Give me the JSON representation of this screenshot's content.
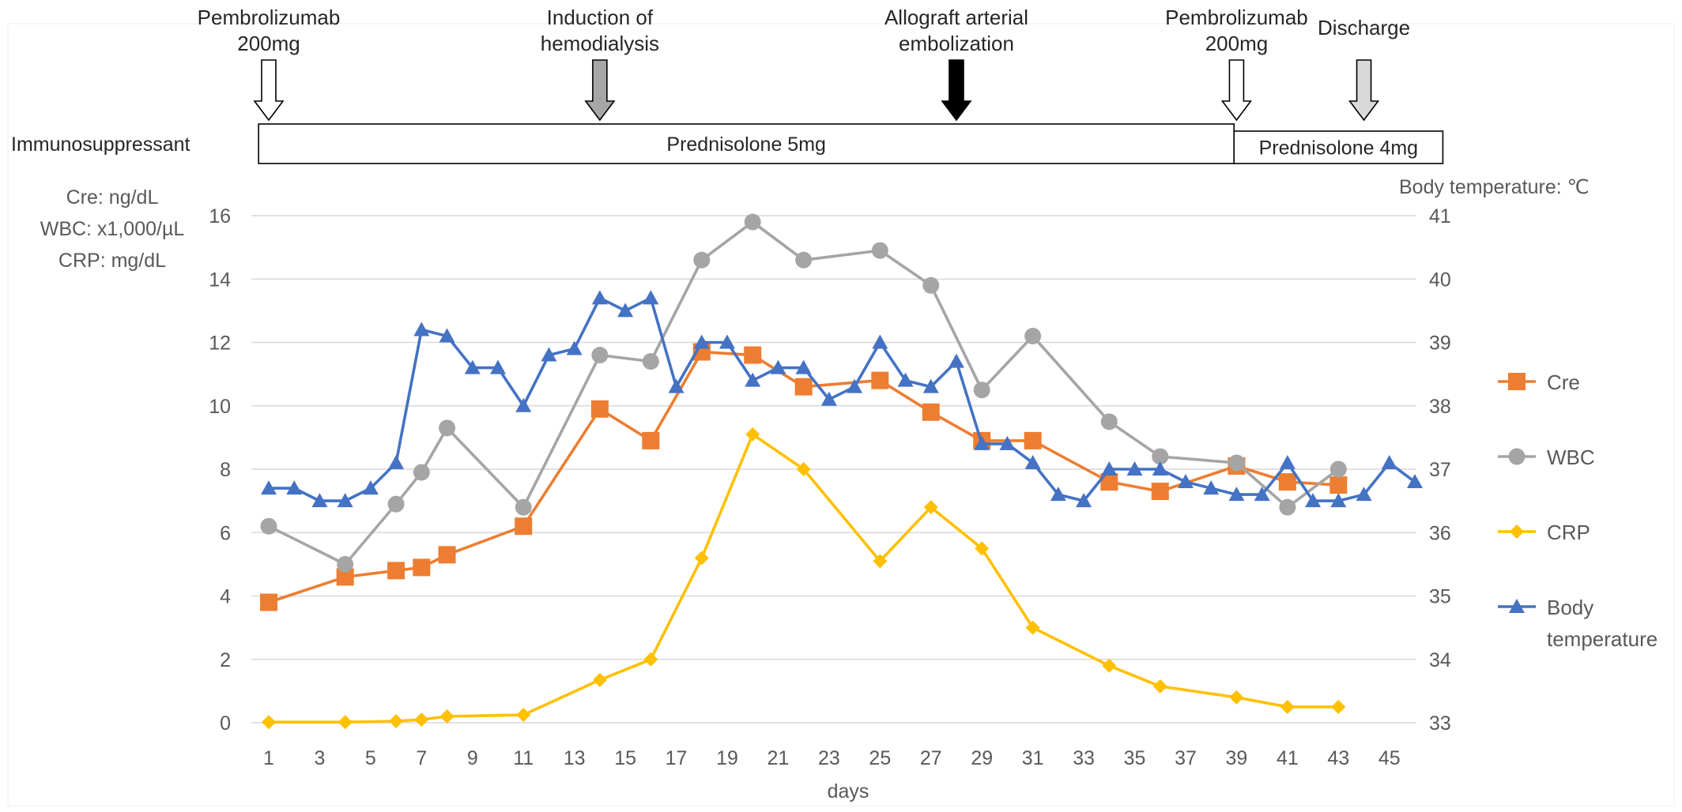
{
  "chart_data": {
    "type": "line",
    "xlabel": "days",
    "y_left_label": [
      "Cre: ng/dL",
      "WBC: x1,000/µL",
      "CRP: mg/dL"
    ],
    "y_right_label": "Body temperature: ℃",
    "xlim": [
      1,
      46
    ],
    "ylim_left": [
      0,
      16
    ],
    "ylim_right": [
      33,
      41
    ],
    "x_ticks": [
      1,
      3,
      5,
      7,
      9,
      11,
      13,
      15,
      17,
      19,
      21,
      23,
      25,
      27,
      29,
      31,
      33,
      35,
      37,
      39,
      41,
      43,
      45
    ],
    "y_left_ticks": [
      0,
      2,
      4,
      6,
      8,
      10,
      12,
      14,
      16
    ],
    "y_right_ticks": [
      33,
      34,
      35,
      36,
      37,
      38,
      39,
      40,
      41
    ],
    "grid": "horizontal",
    "legend_position": "right",
    "series": [
      {
        "name": "Cre",
        "axis": "left",
        "color": "#ED7D31",
        "marker": "square",
        "points": [
          [
            1,
            3.8
          ],
          [
            4,
            4.6
          ],
          [
            6,
            4.8
          ],
          [
            7,
            4.9
          ],
          [
            8,
            5.3
          ],
          [
            11,
            6.2
          ],
          [
            14,
            9.9
          ],
          [
            16,
            8.9
          ],
          [
            18,
            11.7
          ],
          [
            20,
            11.6
          ],
          [
            22,
            10.6
          ],
          [
            25,
            10.8
          ],
          [
            27,
            9.8
          ],
          [
            29,
            8.9
          ],
          [
            31,
            8.9
          ],
          [
            34,
            7.6
          ],
          [
            36,
            7.3
          ],
          [
            39,
            8.1
          ],
          [
            41,
            7.6
          ],
          [
            43,
            7.5
          ]
        ]
      },
      {
        "name": "WBC",
        "axis": "left",
        "color": "#A5A5A5",
        "marker": "circle",
        "points": [
          [
            1,
            6.2
          ],
          [
            4,
            5.0
          ],
          [
            6,
            6.9
          ],
          [
            7,
            7.9
          ],
          [
            8,
            9.3
          ],
          [
            11,
            6.8
          ],
          [
            14,
            11.6
          ],
          [
            16,
            11.4
          ],
          [
            18,
            14.6
          ],
          [
            20,
            15.8
          ],
          [
            22,
            14.6
          ],
          [
            25,
            14.9
          ],
          [
            27,
            13.8
          ],
          [
            29,
            10.5
          ],
          [
            31,
            12.2
          ],
          [
            34,
            9.5
          ],
          [
            36,
            8.4
          ],
          [
            39,
            8.2
          ],
          [
            41,
            6.8
          ],
          [
            43,
            8.0
          ]
        ]
      },
      {
        "name": "CRP",
        "axis": "left",
        "color": "#FFC000",
        "marker": "diamond",
        "points": [
          [
            1,
            0.02
          ],
          [
            4,
            0.02
          ],
          [
            6,
            0.05
          ],
          [
            7,
            0.1
          ],
          [
            8,
            0.2
          ],
          [
            11,
            0.25
          ],
          [
            14,
            1.35
          ],
          [
            16,
            2.0
          ],
          [
            18,
            5.2
          ],
          [
            20,
            9.1
          ],
          [
            22,
            8.0
          ],
          [
            25,
            5.1
          ],
          [
            27,
            6.8
          ],
          [
            29,
            5.5
          ],
          [
            31,
            3.0
          ],
          [
            34,
            1.8
          ],
          [
            36,
            1.15
          ],
          [
            39,
            0.8
          ],
          [
            41,
            0.5
          ],
          [
            43,
            0.5
          ]
        ]
      },
      {
        "name": "Body temperature",
        "axis": "right",
        "color": "#4472C4",
        "marker": "triangle",
        "points": [
          [
            1,
            36.7
          ],
          [
            2,
            36.7
          ],
          [
            3,
            36.5
          ],
          [
            4,
            36.5
          ],
          [
            5,
            36.7
          ],
          [
            6,
            37.1
          ],
          [
            7,
            39.2
          ],
          [
            8,
            39.1
          ],
          [
            9,
            38.6
          ],
          [
            10,
            38.6
          ],
          [
            11,
            38.0
          ],
          [
            12,
            38.8
          ],
          [
            13,
            38.9
          ],
          [
            14,
            39.7
          ],
          [
            15,
            39.5
          ],
          [
            16,
            39.7
          ],
          [
            17,
            38.3
          ],
          [
            18,
            39.0
          ],
          [
            19,
            39.0
          ],
          [
            20,
            38.4
          ],
          [
            21,
            38.6
          ],
          [
            22,
            38.6
          ],
          [
            23,
            38.1
          ],
          [
            24,
            38.3
          ],
          [
            25,
            39.0
          ],
          [
            26,
            38.4
          ],
          [
            27,
            38.3
          ],
          [
            28,
            38.7
          ],
          [
            29,
            37.4
          ],
          [
            30,
            37.4
          ],
          [
            31,
            37.1
          ],
          [
            32,
            36.6
          ],
          [
            33,
            36.5
          ],
          [
            34,
            37.0
          ],
          [
            35,
            37.0
          ],
          [
            36,
            37.0
          ],
          [
            37,
            36.8
          ],
          [
            38,
            36.7
          ],
          [
            39,
            36.6
          ],
          [
            40,
            36.6
          ],
          [
            41,
            37.1
          ],
          [
            42,
            36.5
          ],
          [
            43,
            36.5
          ],
          [
            44,
            36.6
          ],
          [
            45,
            37.1
          ],
          [
            46,
            36.8
          ]
        ]
      }
    ],
    "legend_entries": [
      {
        "name_lines": [
          "Cre"
        ],
        "color": "#ED7D31",
        "marker": "square"
      },
      {
        "name_lines": [
          "WBC"
        ],
        "color": "#A5A5A5",
        "marker": "circle"
      },
      {
        "name_lines": [
          "CRP"
        ],
        "color": "#FFC000",
        "marker": "diamond"
      },
      {
        "name_lines": [
          "Body",
          "temperature"
        ],
        "color": "#4472C4",
        "marker": "triangle"
      }
    ],
    "annotations": [
      {
        "day": 1,
        "lines": [
          "Pembrolizumab",
          "200mg"
        ],
        "arrow_color": "#FFFFFF"
      },
      {
        "day": 14,
        "lines": [
          "Induction of",
          "hemodialysis"
        ],
        "arrow_color": "#A6A6A6"
      },
      {
        "day": 28,
        "lines": [
          "Allograft arterial",
          "embolization"
        ],
        "arrow_color": "#000000"
      },
      {
        "day": 39,
        "lines": [
          "Pembrolizumab",
          "200mg"
        ],
        "arrow_color": "#FFFFFF"
      },
      {
        "day": 44,
        "lines": [
          "Discharge"
        ],
        "arrow_color": "#D9D9D9"
      }
    ],
    "immunosuppressant": {
      "label": "Immunosuppressant",
      "segments": [
        {
          "text": "Prednisolone 5mg",
          "start_day": 0.6,
          "end_day": 38.9
        },
        {
          "text": "Prednisolone 4mg",
          "start_day": 38.9,
          "end_day": 47.1
        }
      ]
    }
  }
}
